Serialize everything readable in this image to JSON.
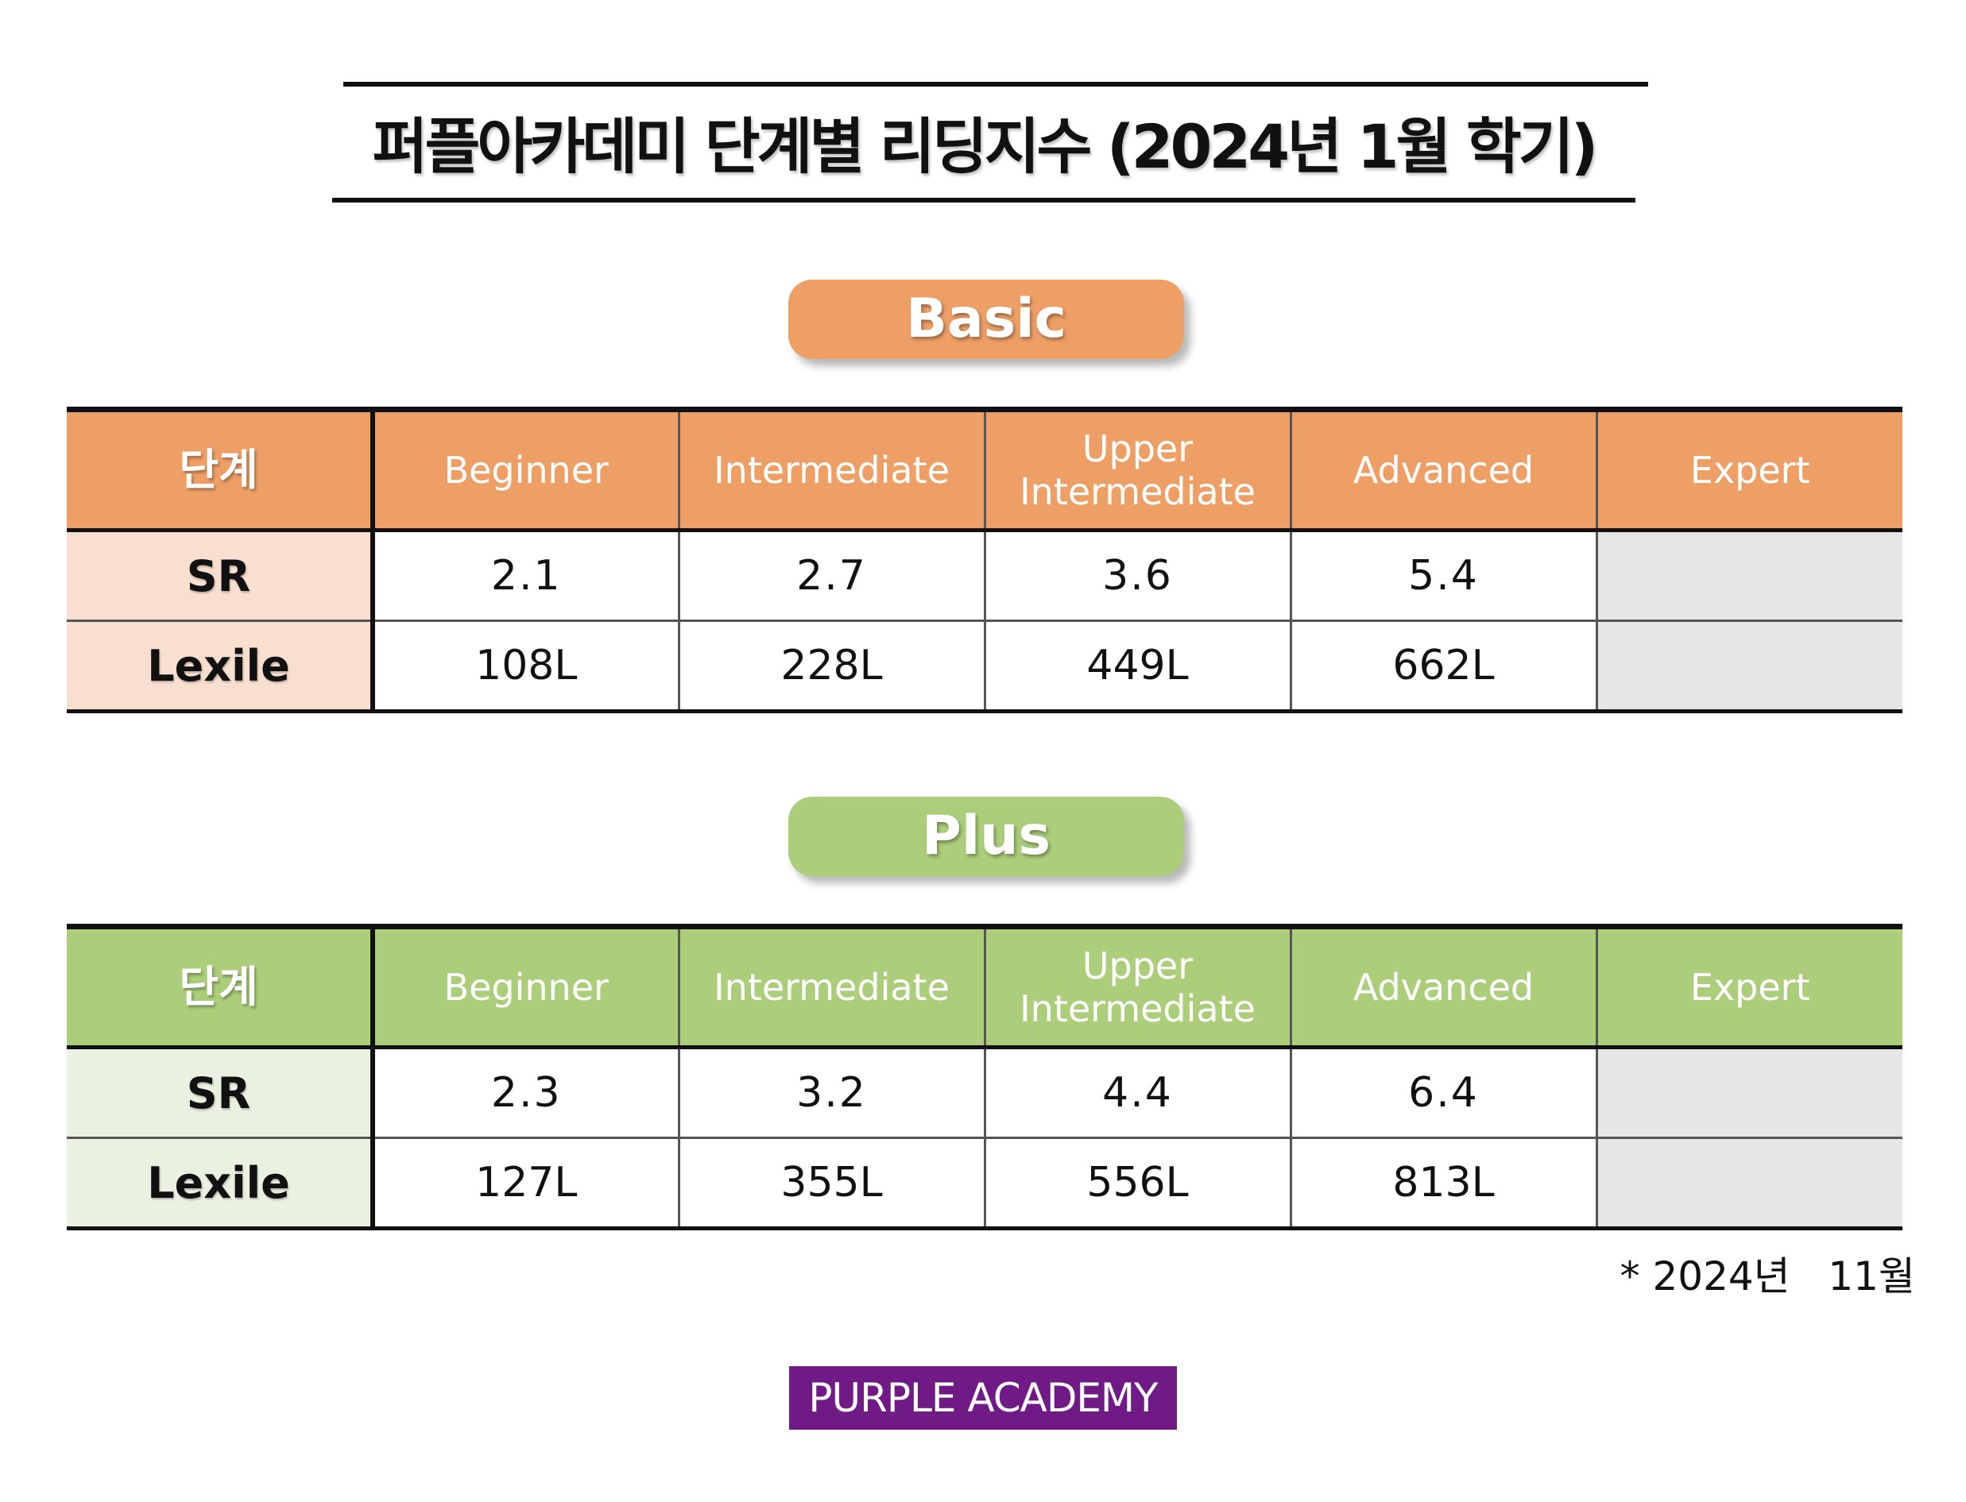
{
  "title": "퍼플아카데미 단계별 리딩지수 (2024년 1월 학기)",
  "sections": [
    {
      "label": "Basic",
      "color": "#ee9f66",
      "label_bg": "#f9dfcf",
      "header_label": "단계",
      "levels": [
        "Beginner",
        "Intermediate",
        "Upper Intermediate",
        "Advanced",
        "Expert"
      ],
      "rows": [
        {
          "label": "SR",
          "values": [
            "2.1",
            "2.7",
            "3.6",
            "5.4",
            ""
          ]
        },
        {
          "label": "Lexile",
          "values": [
            "108L",
            "228L",
            "449L",
            "662L",
            ""
          ]
        }
      ]
    },
    {
      "label": "Plus",
      "color": "#acce7b",
      "label_bg": "#ebf1e1",
      "header_label": "단계",
      "levels": [
        "Beginner",
        "Intermediate",
        "Upper Intermediate",
        "Advanced",
        "Expert"
      ],
      "rows": [
        {
          "label": "SR",
          "values": [
            "2.3",
            "3.2",
            "4.4",
            "6.4",
            ""
          ]
        },
        {
          "label": "Lexile",
          "values": [
            "127L",
            "355L",
            "556L",
            "813L",
            ""
          ]
        }
      ]
    }
  ],
  "footnote": "* 2024년   11월",
  "brand": {
    "text": "PURPLE ACADEMY",
    "color": "#701a85"
  }
}
